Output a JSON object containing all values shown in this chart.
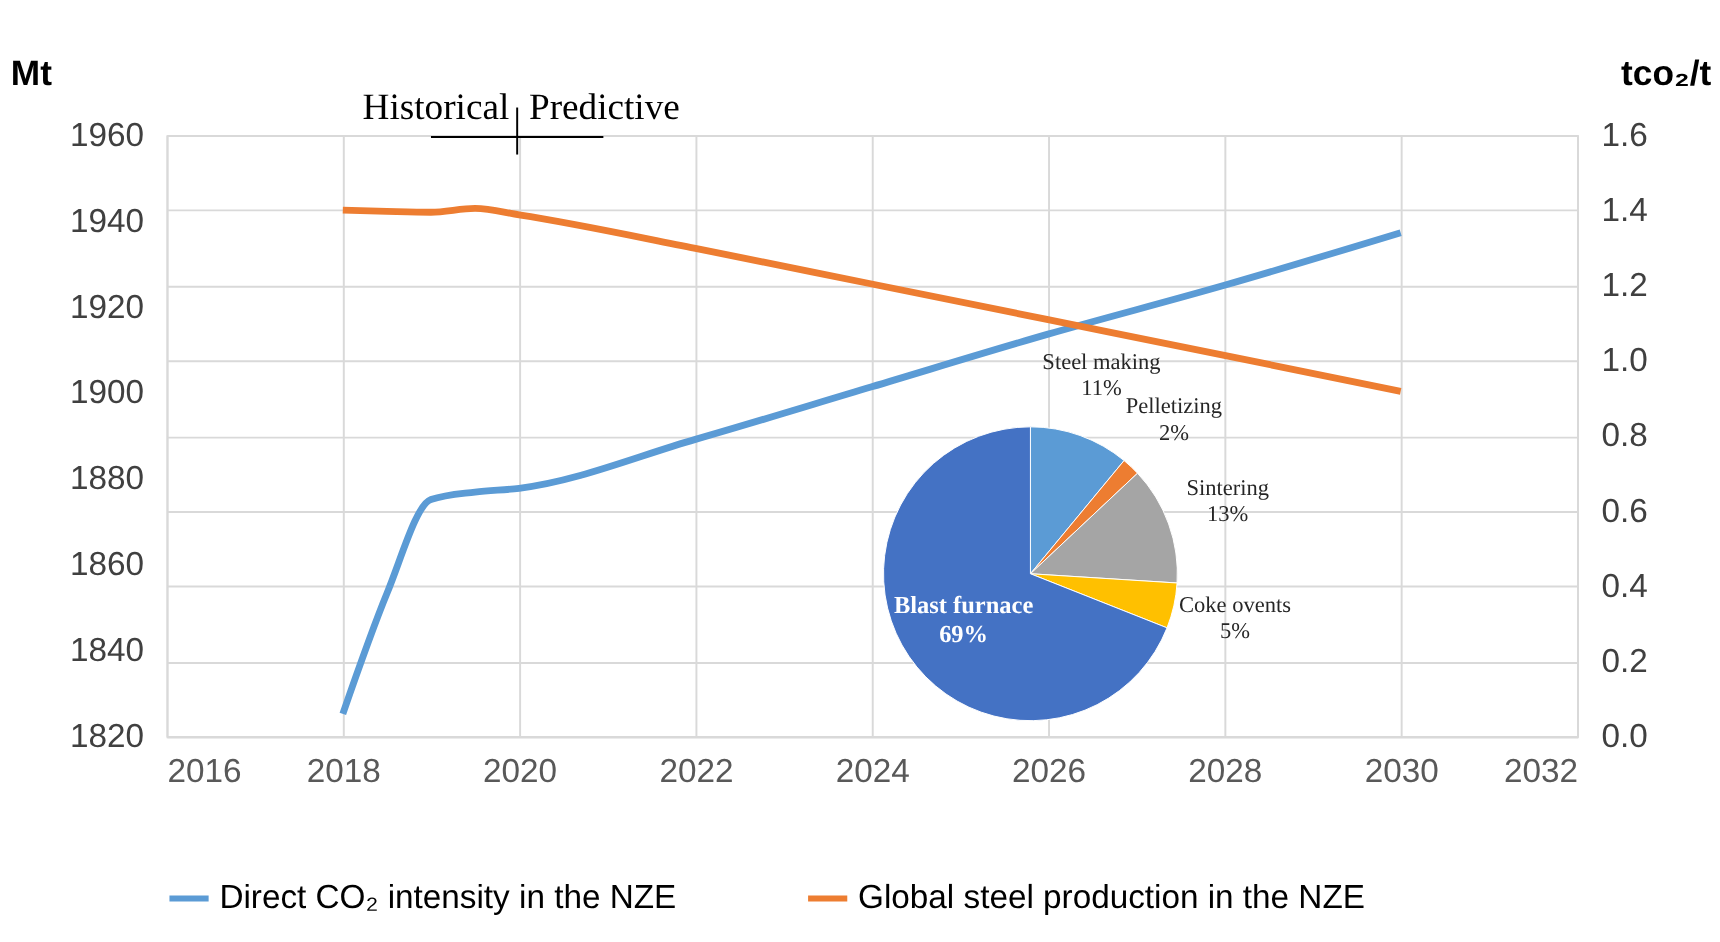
{
  "chart_data": [
    {
      "type": "line",
      "ylabel": "Mt",
      "y2label": "tco₂/t",
      "x": [
        2018,
        2018.5,
        2019,
        2019.5,
        2020,
        2022,
        2024,
        2026,
        2028,
        2030
      ],
      "series": [
        {
          "name": "Direct CO₂ intensity in the NZE",
          "color": "#5b9bd5",
          "axis": "y2",
          "values": [
            0.06,
            0.38,
            0.63,
            0.65,
            0.66,
            0.79,
            0.93,
            1.07,
            1.2,
            1.34
          ]
        },
        {
          "name": "Global steel production in the NZE",
          "color": "#ed7d31",
          "axis": "y",
          "values": [
            1942.5,
            1942.2,
            1942,
            1942.9,
            1941.4,
            1933.6,
            1925.3,
            1917,
            1908.7,
            1900.3
          ]
        }
      ],
      "xlim": [
        2016,
        2032
      ],
      "xticks": [
        2016,
        2018,
        2020,
        2022,
        2024,
        2026,
        2028,
        2030,
        2032
      ],
      "ylim": [
        1820,
        1960
      ],
      "yticks": [
        1820,
        1840,
        1860,
        1880,
        1900,
        1920,
        1940,
        1960
      ],
      "y2lim": [
        0,
        1.6
      ],
      "y2ticks": [
        {
          "value": 0,
          "label": "0.0"
        },
        0.2,
        0.4,
        0.6,
        0.8,
        {
          "value": 1,
          "label": "1.0"
        },
        1.2,
        1.4,
        1.6
      ],
      "grid": true,
      "legend": "bottom",
      "line_style": "solid",
      "annotations": [
        "Historical",
        "Predictive"
      ]
    },
    {
      "type": "pie",
      "categories": [
        "Steel making",
        "Pelletizing",
        "Sintering",
        "Coke ovents",
        "Blast furnace"
      ],
      "values": [
        11,
        2,
        13,
        5,
        69
      ],
      "colors": [
        "#5b9bd5",
        "#ed7d31",
        "#a5a5a5",
        "#ffc000",
        "#4472c4"
      ],
      "value_labels": [
        "11%",
        "2%",
        "13%",
        "5%",
        "69%"
      ]
    }
  ]
}
